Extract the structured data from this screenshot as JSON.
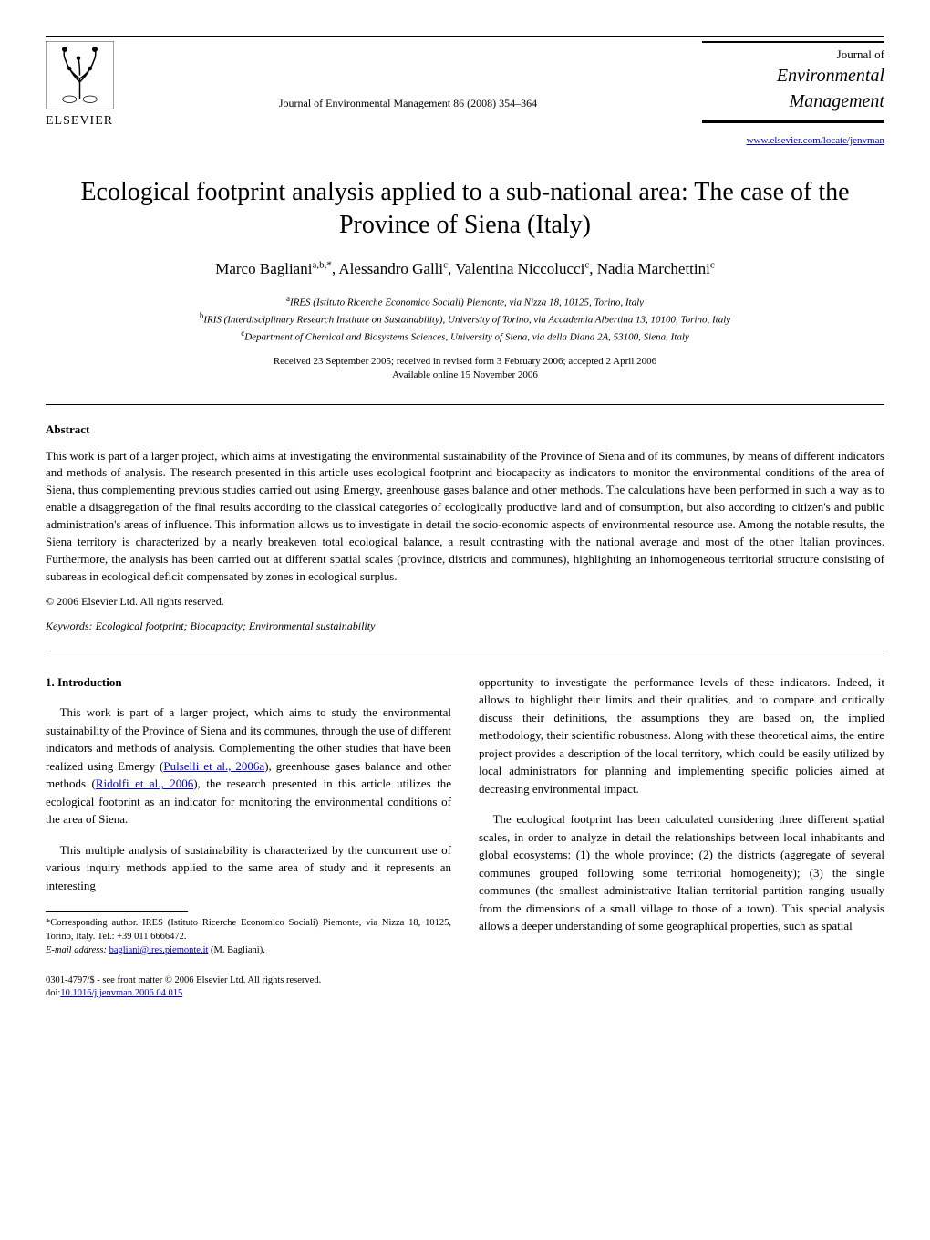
{
  "header": {
    "publisher": "ELSEVIER",
    "journal_ref": "Journal of Environmental Management 86 (2008) 354–364",
    "journal_block": {
      "line1": "Journal of",
      "line2": "Environmental",
      "line3": "Management"
    },
    "url": "www.elsevier.com/locate/jenvman"
  },
  "article": {
    "title": "Ecological footprint analysis applied to a sub-national area: The case of the Province of Siena (Italy)",
    "authors_html": "Marco Bagliani<sup>a,b,*</sup>, Alessandro Galli<sup>c</sup>, Valentina Niccolucci<sup>c</sup>, Nadia Marchettini<sup>c</sup>",
    "affiliations": [
      {
        "sup": "a",
        "text": "IRES (Istituto Ricerche Economico Sociali) Piemonte, via Nizza 18, 10125, Torino, Italy"
      },
      {
        "sup": "b",
        "text": "IRIS (Interdisciplinary Research Institute on Sustainability), University of Torino, via Accademia Albertina 13, 10100, Torino, Italy"
      },
      {
        "sup": "c",
        "text": "Department of Chemical and Biosystems Sciences, University of Siena, via della Diana 2A, 53100, Siena, Italy"
      }
    ],
    "received": "Received 23 September 2005; received in revised form 3 February 2006; accepted 2 April 2006",
    "available": "Available online 15 November 2006"
  },
  "abstract": {
    "heading": "Abstract",
    "body": "This work is part of a larger project, which aims at investigating the environmental sustainability of the Province of Siena and of its communes, by means of different indicators and methods of analysis. The research presented in this article uses ecological footprint and biocapacity as indicators to monitor the environmental conditions of the area of Siena, thus complementing previous studies carried out using Emergy, greenhouse gases balance and other methods. The calculations have been performed in such a way as to enable a disaggregation of the final results according to the classical categories of ecologically productive land and of consumption, but also according to citizen's and public administration's areas of influence. This information allows us to investigate in detail the socio-economic aspects of environmental resource use. Among the notable results, the Siena territory is characterized by a nearly breakeven total ecological balance, a result contrasting with the national average and most of the other Italian provinces. Furthermore, the analysis has been carried out at different spatial scales (province, districts and communes), highlighting an inhomogeneous territorial structure consisting of subareas in ecological deficit compensated by zones in ecological surplus.",
    "copyright": "© 2006 Elsevier Ltd. All rights reserved.",
    "keywords_label": "Keywords:",
    "keywords": "Ecological footprint; Biocapacity; Environmental sustainability"
  },
  "body": {
    "heading1": "1. Introduction",
    "left_paras": [
      "This work is part of a larger project, which aims to study the environmental sustainability of the Province of Siena and its communes, through the use of different indicators and methods of analysis. Complementing the other studies that have been realized using Emergy (Pulselli et al., 2006a), greenhouse gases balance and other methods (Ridolfi et al., 2006), the research presented in this article utilizes the ecological footprint as an indicator for monitoring the environmental conditions of the area of Siena.",
      "This multiple analysis of sustainability is characterized by the concurrent use of various inquiry methods applied to the same area of study and it represents an interesting"
    ],
    "right_paras": [
      "opportunity to investigate the performance levels of these indicators. Indeed, it allows to highlight their limits and their qualities, and to compare and critically discuss their definitions, the assumptions they are based on, the implied methodology, their scientific robustness. Along with these theoretical aims, the entire project provides a description of the local territory, which could be easily utilized by local administrators for planning and implementing specific policies aimed at decreasing environmental impact.",
      "The ecological footprint has been calculated considering three different spatial scales, in order to analyze in detail the relationships between local inhabitants and global ecosystems: (1) the whole province; (2) the districts (aggregate of several communes grouped following some territorial homogeneity); (3) the single communes (the smallest administrative Italian territorial partition ranging usually from the dimensions of a small village to those of a town). This special analysis allows a deeper understanding of some geographical properties, such as spatial"
    ]
  },
  "footnote": {
    "corr": "*Corresponding author. IRES (Istituto Ricerche Economico Sociali) Piemonte, via Nizza 18, 10125, Torino, Italy. Tel.: +39 011 6666472.",
    "email_label": "E-mail address:",
    "email": "bagliani@ires.piemonte.it",
    "email_suffix": "(M. Bagliani)."
  },
  "bottom": {
    "line1": "0301-4797/$ - see front matter © 2006 Elsevier Ltd. All rights reserved.",
    "doi_label": "doi:",
    "doi": "10.1016/j.jenvman.2006.04.015"
  },
  "colors": {
    "link": "#0000cc",
    "text": "#000000",
    "bg": "#ffffff"
  }
}
